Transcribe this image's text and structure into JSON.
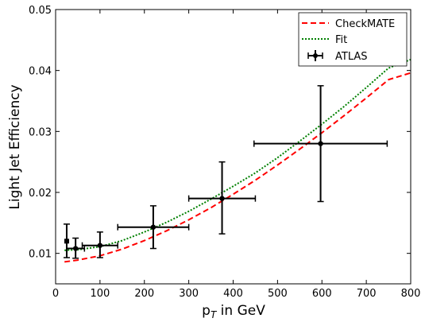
{
  "chart_data": {
    "type": "line",
    "xlabel": "p",
    "xlabel_sub": "T",
    "xlabel_rest": " in GeV",
    "ylabel": "Light Jet Efficiency",
    "xlim": [
      0,
      800
    ],
    "ylim": [
      0.005,
      0.05
    ],
    "x_ticks": [
      0,
      100,
      200,
      300,
      400,
      500,
      600,
      700,
      800
    ],
    "y_ticks": [
      0.01,
      0.02,
      0.03,
      0.04,
      0.05
    ],
    "y_tick_labels": [
      "0.01",
      "0.02",
      "0.03",
      "0.04",
      "0.05"
    ],
    "legend_position": "top-right",
    "grid": false,
    "series": [
      {
        "name": "CheckMATE",
        "style": "dashed",
        "color": "#ff0000",
        "x": [
          20,
          50,
          100,
          150,
          200,
          250,
          300,
          350,
          400,
          450,
          500,
          550,
          600,
          650,
          700,
          750,
          800
        ],
        "y": [
          0.0086,
          0.0089,
          0.0096,
          0.0107,
          0.0121,
          0.0137,
          0.0155,
          0.0175,
          0.0197,
          0.022,
          0.0245,
          0.0271,
          0.0298,
          0.0326,
          0.0355,
          0.0385,
          0.0396
        ]
      },
      {
        "name": "Fit",
        "style": "dotted",
        "color": "#008000",
        "x": [
          20,
          50,
          100,
          150,
          200,
          250,
          300,
          350,
          400,
          450,
          500,
          550,
          600,
          650,
          700,
          750,
          800
        ],
        "y": [
          0.0105,
          0.0106,
          0.0111,
          0.0121,
          0.0135,
          0.0151,
          0.0169,
          0.0189,
          0.021,
          0.0232,
          0.0257,
          0.0284,
          0.0312,
          0.0341,
          0.0372,
          0.0404,
          0.0418
        ]
      },
      {
        "name": "ATLAS",
        "style": "errorbar",
        "color": "#000000",
        "points": [
          {
            "x": 25,
            "y": 0.012,
            "xerr": [
              0,
              0
            ],
            "yerr": [
              0.0027,
              0.0028
            ],
            "marker": "square"
          },
          {
            "x": 45,
            "y": 0.0108,
            "xerr": [
              20,
              20
            ],
            "yerr": [
              0.0016,
              0.0017
            ]
          },
          {
            "x": 100,
            "y": 0.0113,
            "xerr": [
              40,
              40
            ],
            "yerr": [
              0.002,
              0.0022
            ]
          },
          {
            "x": 220,
            "y": 0.0143,
            "xerr": [
              80,
              80
            ],
            "yerr": [
              0.0035,
              0.0035
            ]
          },
          {
            "x": 375,
            "y": 0.019,
            "xerr": [
              75,
              75
            ],
            "yerr": [
              0.0058,
              0.006
            ]
          },
          {
            "x": 597,
            "y": 0.028,
            "xerr": [
              150,
              150
            ],
            "yerr": [
              0.0095,
              0.0095
            ]
          }
        ]
      }
    ]
  }
}
